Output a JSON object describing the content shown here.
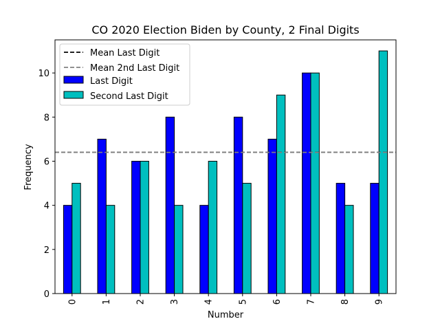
{
  "chart_data": {
    "type": "bar",
    "title": "CO 2020 Election Biden by County, 2 Final Digits",
    "xlabel": "Number",
    "ylabel": "Frequency",
    "categories": [
      "0",
      "1",
      "2",
      "3",
      "4",
      "5",
      "6",
      "7",
      "8",
      "9"
    ],
    "ylim": [
      0,
      11.5
    ],
    "yticks": [
      "0",
      "2",
      "4",
      "6",
      "8",
      "10"
    ],
    "series": [
      {
        "name": "Last Digit",
        "color": "#0000ff",
        "values": [
          4,
          7,
          6,
          8,
          4,
          8,
          7,
          10,
          5,
          5
        ]
      },
      {
        "name": "Second Last Digit",
        "color": "#00bfbf",
        "values": [
          5,
          4,
          6,
          4,
          6,
          5,
          9,
          10,
          4,
          11
        ]
      }
    ],
    "reference_lines": [
      {
        "name": "Mean Last Digit",
        "value": 6.4,
        "color": "#000000",
        "style": "dashed"
      },
      {
        "name": "Mean 2nd Last Digit",
        "value": 6.4,
        "color": "#808080",
        "style": "dashed"
      }
    ],
    "legend_position": "top-left",
    "grid": false
  }
}
